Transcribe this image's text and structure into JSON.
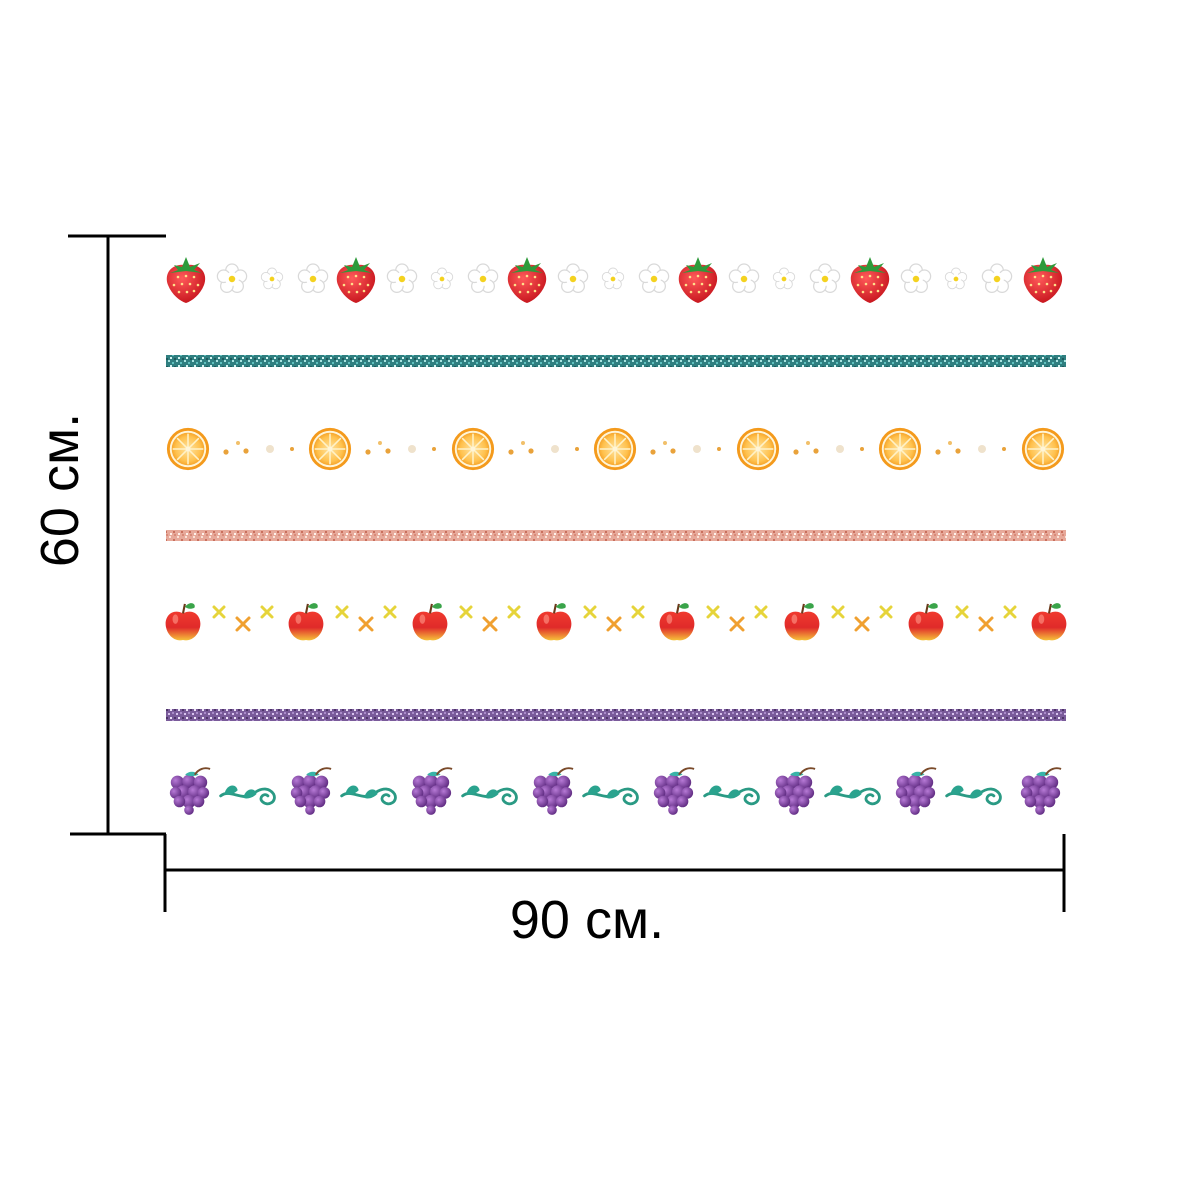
{
  "dimensions": {
    "width_label": "90 см.",
    "height_label": "60 см."
  },
  "colors": {
    "background": "#ffffff",
    "dimension_line": "#000000",
    "teal_glitter": "#3f9a9a",
    "peach_glitter": "#e3a595",
    "purple_glitter": "#8a6aa8",
    "strawberry": "#d9232a",
    "orange": "#f4a62a",
    "apple": "#e8322e",
    "grape": "#7d3f9a",
    "vine": "#2aa088"
  },
  "pattern_rows": [
    {
      "motif": "strawberry-with-flowers"
    },
    {
      "motif": "teal-glitter-stripe"
    },
    {
      "motif": "orange-slice-with-dots"
    },
    {
      "motif": "peach-glitter-stripe"
    },
    {
      "motif": "apple-with-crosses"
    },
    {
      "motif": "purple-glitter-stripe"
    },
    {
      "motif": "grapes-with-vines"
    }
  ]
}
